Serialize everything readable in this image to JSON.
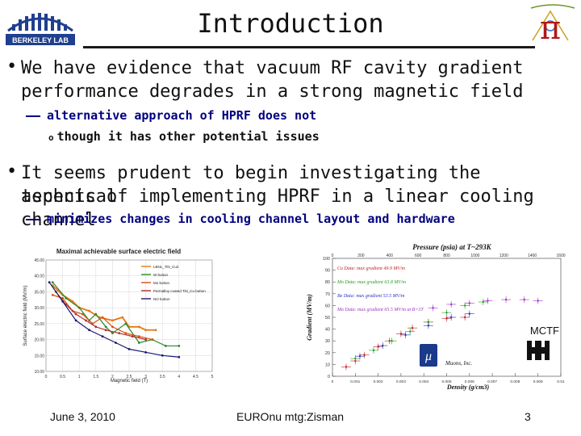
{
  "slide": {
    "title": "Introduction",
    "logos": {
      "left": {
        "text": "BERKELEY LAB",
        "color": "#1f3f8f"
      },
      "right": {
        "text": "π",
        "color": "#b01818"
      }
    },
    "bullets": [
      {
        "text_line1": "We have evidence that vacuum RF cavity gradient",
        "text_line2": "performance degrades in a strong magnetic field",
        "sub": [
          {
            "text": "alternative approach of HPRF does not",
            "subsub": [
              {
                "text": "though it has other potential issues"
              }
            ]
          }
        ]
      },
      {
        "text_line1": "It seems prudent to begin investigating the technical",
        "text_line2": "aspects of implementing HPRF in a linear cooling channel",
        "sub": [
          {
            "text": "minimizes changes in cooling channel layout and hardware"
          }
        ]
      }
    ],
    "footer": {
      "date": "June 3, 2010",
      "center": "EUROnu mtg:Zisman",
      "page": "3"
    }
  },
  "chart_data": [
    {
      "type": "line",
      "title": "Maximal achievable surface electric field",
      "xlabel": "Magnetic field (T)",
      "ylabel": "Surface electric field (MV/m)",
      "xlim": [
        0,
        5
      ],
      "ylim": [
        10,
        45
      ],
      "xticks": [
        "0",
        "0.5",
        "1",
        "1.5",
        "2",
        "2.5",
        "3",
        "3.5",
        "4",
        "4.5",
        "5"
      ],
      "yticks": [
        "10.00",
        "15.00",
        "20.00",
        "25.00",
        "30.00",
        "35.00",
        "40.00",
        "45.00"
      ],
      "grid": true,
      "legend_position": "top-right",
      "series": [
        {
          "name": "LBNL_TiN_Cu2",
          "color": "#e87810",
          "x": [
            0.2,
            0.5,
            0.8,
            1.0,
            1.3,
            1.6,
            2.0,
            2.3,
            2.5,
            2.8,
            3.0,
            3.3
          ],
          "y": [
            37,
            34,
            32,
            30,
            29,
            27,
            26,
            27,
            24,
            24,
            23,
            23
          ]
        },
        {
          "name": "W button",
          "color": "#2a8a2a",
          "x": [
            0.2,
            0.6,
            1.0,
            1.3,
            1.5,
            1.8,
            2.0,
            2.4,
            2.8,
            3.2,
            3.6,
            4.0
          ],
          "y": [
            38,
            33,
            30,
            26,
            28,
            24,
            22,
            25,
            19,
            20,
            18,
            18
          ]
        },
        {
          "name": "Mo button",
          "color": "#d85010",
          "x": [
            0.2,
            0.5,
            0.8,
            1.1,
            1.4,
            1.7,
            2.0,
            2.4,
            2.8,
            3.2
          ],
          "y": [
            34,
            33,
            29,
            28,
            25,
            27,
            24,
            22,
            21,
            20
          ]
        },
        {
          "name": "Permalloy coated TiN_Cu button",
          "color": "#b03030",
          "x": [
            0.3,
            0.6,
            0.9,
            1.2,
            1.5,
            1.8,
            2.2,
            2.6,
            3.0
          ],
          "y": [
            35,
            31,
            28,
            26,
            24,
            23,
            22,
            21,
            20
          ]
        },
        {
          "name": "NO button",
          "color": "#1a1a70",
          "x": [
            0.1,
            0.5,
            0.9,
            1.3,
            1.7,
            2.1,
            2.5,
            3.0,
            3.5,
            4.0
          ],
          "y": [
            38,
            32,
            26,
            23,
            21,
            19,
            17,
            16,
            15,
            14.5
          ]
        }
      ]
    },
    {
      "type": "scatter",
      "title": "Pressure (psia) at T~293K",
      "xlabel": "Density (g/cm3)",
      "ylabel": "Gradient (MV/m)",
      "xlim": [
        0,
        0.01
      ],
      "ylim": [
        0,
        100
      ],
      "xticks": [
        "0",
        "0.001",
        "0.002",
        "0.003",
        "0.004",
        "0.005",
        "0.006",
        "0.007",
        "0.008",
        "0.009",
        "0.01"
      ],
      "yticks": [
        "0",
        "10",
        "20",
        "30",
        "40",
        "50",
        "60",
        "70",
        "80",
        "90",
        "100"
      ],
      "top_ticks": [
        "0",
        "200",
        "400",
        "600",
        "800",
        "1000",
        "1200",
        "1400",
        "1600"
      ],
      "legend_position": "top-left",
      "legend": [
        {
          "name": "Cu Data: max gradient 49.9 MV/m",
          "color": "#c02020"
        },
        {
          "name": "Mo Data: max gradient 63.8 MV/m",
          "color": "#20a020"
        },
        {
          "name": "Be Data: max gradient 53.5 MV/m",
          "color": "#2030c0"
        },
        {
          "name": "Mo Data: max gradient 65.5 MV/m at B=3T",
          "color": "#a030c0"
        }
      ],
      "series": [
        {
          "name": "Cu Data: max gradient 49.9 MV/m",
          "color": "#c02020",
          "x": [
            0.0006,
            0.001,
            0.0014,
            0.002,
            0.0025,
            0.003,
            0.0035,
            0.0042,
            0.005,
            0.0058
          ],
          "y": [
            8,
            13,
            18,
            25,
            30,
            36,
            41,
            46,
            49,
            50
          ]
        },
        {
          "name": "Mo Data: max gradient 63.8 MV/m",
          "color": "#20a020",
          "x": [
            0.001,
            0.0018,
            0.0026,
            0.0034,
            0.0042,
            0.005,
            0.0058,
            0.0066
          ],
          "y": [
            15,
            22,
            30,
            38,
            46,
            54,
            60,
            63
          ]
        },
        {
          "name": "Be Data: max gradient 53.5 MV/m",
          "color": "#2030c0",
          "x": [
            0.0012,
            0.0022,
            0.0032,
            0.0042,
            0.0052,
            0.006
          ],
          "y": [
            17,
            26,
            35,
            43,
            50,
            53
          ]
        },
        {
          "name": "Mo Data: max gradient 65.5 MV/m at B=3T",
          "color": "#a030c0",
          "x": [
            0.0044,
            0.0052,
            0.006,
            0.0068,
            0.0076,
            0.0084,
            0.009
          ],
          "y": [
            58,
            61,
            62,
            64,
            65,
            65,
            64
          ]
        }
      ],
      "annotations": {
        "mctf": "MCTF",
        "muons": "Muons, Inc.",
        "mu_symbol": "μ"
      }
    }
  ]
}
